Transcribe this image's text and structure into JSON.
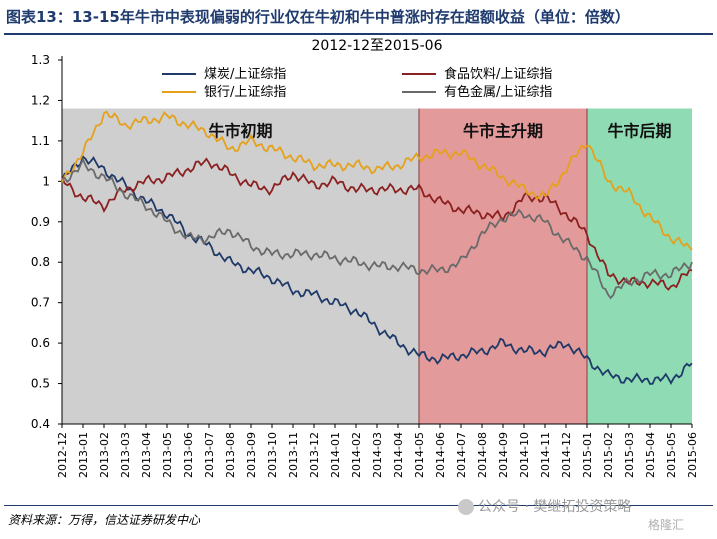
{
  "figure_title": "图表13：13-15年牛市中表现偏弱的行业仅在牛初和牛中普涨时存在超额收益（单位：倍数）",
  "source_note": "资料来源：万得，信达证券研发中心",
  "watermark": "公众号 · 樊继拓投资策略",
  "watermark_logo": "格隆汇",
  "chart_data": {
    "type": "line",
    "title": "2012-12至2015-06",
    "ylim": [
      0.4,
      1.3
    ],
    "y_ticks": [
      "0.4",
      "0.5",
      "0.6",
      "0.7",
      "0.8",
      "0.9",
      "1",
      "1.1",
      "1.2",
      "1.3"
    ],
    "x_ticks": [
      "2012-12",
      "2013-01",
      "2013-02",
      "2013-03",
      "2013-04",
      "2013-05",
      "2013-06",
      "2013-07",
      "2013-08",
      "2013-09",
      "2013-10",
      "2013-11",
      "2013-12",
      "2014-01",
      "2014-02",
      "2014-03",
      "2014-04",
      "2014-05",
      "2014-06",
      "2014-07",
      "2014-08",
      "2014-09",
      "2014-10",
      "2014-11",
      "2014-12",
      "2015-01",
      "2015-02",
      "2015-03",
      "2015-04",
      "2015-05",
      "2015-06"
    ],
    "phases": [
      {
        "label": "牛市初期",
        "start": "2012-12",
        "end": "2014-05",
        "color": "#cfcfcf"
      },
      {
        "label": "牛市主升期",
        "start": "2014-05",
        "end": "2015-01",
        "color": "#e39a9a"
      },
      {
        "label": "牛市后期",
        "start": "2015-01",
        "end": "2015-06",
        "color": "#8fdcb4"
      }
    ],
    "series": [
      {
        "name": "煤炭/上证综指",
        "color": "#1f3a68",
        "values": [
          1.0,
          1.06,
          1.03,
          0.99,
          0.95,
          0.92,
          0.87,
          0.84,
          0.8,
          0.78,
          0.76,
          0.73,
          0.72,
          0.7,
          0.68,
          0.64,
          0.6,
          0.57,
          0.56,
          0.57,
          0.58,
          0.6,
          0.58,
          0.58,
          0.6,
          0.56,
          0.52,
          0.51,
          0.51,
          0.51,
          0.55
        ]
      },
      {
        "name": "食品饮料/上证综指",
        "color": "#8b2020",
        "values": [
          1.0,
          0.96,
          0.94,
          0.98,
          1.0,
          1.01,
          1.03,
          1.05,
          1.02,
          0.99,
          0.98,
          1.02,
          0.99,
          1.0,
          0.98,
          0.98,
          0.98,
          0.98,
          0.95,
          0.93,
          0.92,
          0.91,
          0.96,
          0.96,
          0.92,
          0.87,
          0.77,
          0.75,
          0.75,
          0.74,
          0.78
        ]
      },
      {
        "name": "银行/上证综指",
        "color": "#e5a11b",
        "values": [
          1.0,
          1.07,
          1.17,
          1.14,
          1.15,
          1.16,
          1.14,
          1.12,
          1.08,
          1.1,
          1.08,
          1.06,
          1.04,
          1.04,
          1.04,
          1.03,
          1.04,
          1.06,
          1.07,
          1.07,
          1.04,
          1.01,
          0.98,
          0.96,
          1.03,
          1.1,
          1.0,
          0.97,
          0.91,
          0.86,
          0.83
        ]
      },
      {
        "name": "有色金属/上证综指",
        "color": "#6a6a6a",
        "values": [
          1.0,
          1.04,
          1.01,
          0.97,
          0.94,
          0.9,
          0.86,
          0.86,
          0.88,
          0.84,
          0.82,
          0.82,
          0.82,
          0.81,
          0.8,
          0.79,
          0.79,
          0.78,
          0.78,
          0.8,
          0.87,
          0.91,
          0.92,
          0.9,
          0.85,
          0.81,
          0.72,
          0.75,
          0.77,
          0.77,
          0.8
        ]
      }
    ]
  }
}
